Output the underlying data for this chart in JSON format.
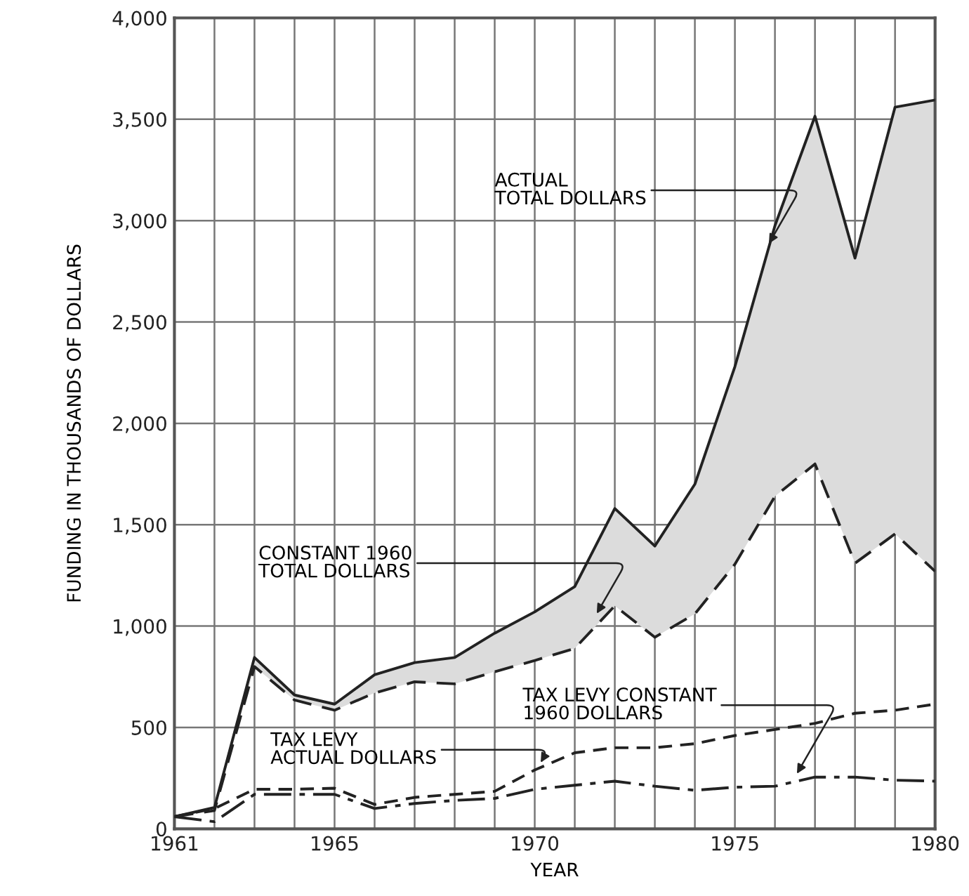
{
  "chart_data": {
    "type": "line",
    "xlabel": "YEAR",
    "ylabel": "FUNDING IN THOUSANDS OF DOLLARS",
    "x": [
      1961,
      1962,
      1963,
      1964,
      1965,
      1966,
      1967,
      1968,
      1969,
      1970,
      1971,
      1972,
      1973,
      1974,
      1975,
      1976,
      1977,
      1978,
      1979,
      1980
    ],
    "series": [
      {
        "color": "#222222",
        "line_style": "solid",
        "values": [
          60,
          105,
          845,
          660,
          615,
          760,
          820,
          845,
          965,
          1070,
          1195,
          1580,
          1395,
          1700,
          2280,
          2975,
          3515,
          2815,
          3560,
          3595
        ],
        "lower": [
          60,
          90,
          800,
          635,
          585,
          670,
          725,
          715,
          775,
          830,
          890,
          1100,
          945,
          1060,
          1305,
          1640,
          1800,
          1310,
          1455,
          1270
        ],
        "upper": [
          60,
          105,
          845,
          660,
          615,
          760,
          820,
          845,
          965,
          1070,
          1195,
          1580,
          1395,
          1700,
          2280,
          2975,
          3515,
          2815,
          3560,
          3595
        ]
      },
      {
        "color": "#222222",
        "line_style": "dashed",
        "values": [
          60,
          90,
          800,
          635,
          585,
          670,
          725,
          715,
          775,
          830,
          890,
          1100,
          945,
          1060,
          1305,
          1640,
          1800,
          1310,
          1455,
          1270
        ]
      },
      {
        "color": "#222222",
        "line_style": "dashed",
        "values": [
          60,
          100,
          195,
          195,
          200,
          120,
          155,
          170,
          185,
          290,
          375,
          400,
          400,
          420,
          460,
          490,
          520,
          570,
          585,
          615
        ]
      },
      {
        "color": "#222222",
        "line_style": "dashdot",
        "values": [
          60,
          35,
          170,
          170,
          170,
          100,
          125,
          140,
          150,
          195,
          215,
          235,
          210,
          190,
          205,
          210,
          255,
          255,
          240,
          235
        ]
      }
    ],
    "xlim": [
      1961,
      1980
    ],
    "xticks": [
      1961,
      {
        "value": 1962,
        "label": null
      },
      {
        "value": 1963,
        "label": null
      },
      {
        "value": 1964,
        "label": null
      },
      1965,
      {
        "value": 1966,
        "label": null
      },
      {
        "value": 1967,
        "label": null
      },
      {
        "value": 1968,
        "label": null
      },
      {
        "value": 1969,
        "label": null
      },
      1970,
      {
        "value": 1971,
        "label": null
      },
      {
        "value": 1972,
        "label": null
      },
      {
        "value": 1973,
        "label": null
      },
      {
        "value": 1974,
        "label": null
      },
      1975,
      {
        "value": 1976,
        "label": null
      },
      {
        "value": 1977,
        "label": null
      },
      {
        "value": 1978,
        "label": null
      },
      {
        "value": 1979,
        "label": null
      },
      1980
    ],
    "ylim": [
      0,
      4000
    ],
    "yticks": [
      0,
      {
        "value": 500,
        "label": "500"
      },
      {
        "value": 1000,
        "label": "1,000"
      },
      {
        "value": 1500,
        "label": "1,500"
      },
      {
        "value": 2000,
        "label": "2,000"
      },
      {
        "value": 2500,
        "label": "2,500"
      },
      {
        "value": 3000,
        "label": "3,000"
      },
      {
        "value": 3500,
        "label": "3,500"
      },
      {
        "value": 4000,
        "label": "4,000"
      }
    ],
    "grid": true,
    "annotations": [
      {
        "text": "ACTUAL\nTOTAL DOLLARS",
        "x": 1975.8,
        "y": 2870
      },
      {
        "text": "CONSTANT 1960\nTOTAL DOLLARS",
        "x": 1971.5,
        "y": 1045
      },
      {
        "text": "TAX LEVY CONSTANT\n1960 DOLLARS",
        "x": 1976.5,
        "y": 255
      },
      {
        "text": "TAX LEVY\nACTUAL DOLLARS",
        "x": 1970.1,
        "y": 310
      }
    ]
  }
}
